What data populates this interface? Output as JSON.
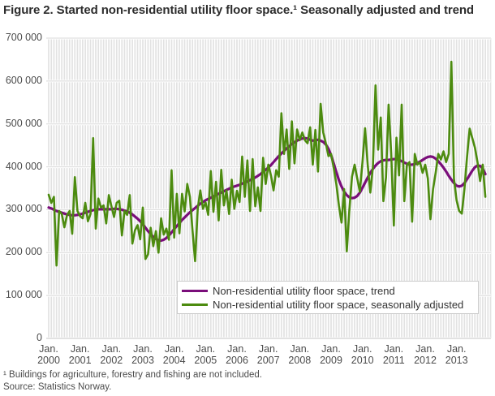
{
  "header": {
    "title": "Figure 2. Started non-residential utility floor space.¹ Seasonally adjusted and trend"
  },
  "footnotes": {
    "note": "¹ Buildings for agriculture, forestry and fishing are not included.",
    "source": "Source: Statistics Norway."
  },
  "chart_data": {
    "type": "line",
    "title": "Figure 2. Started non-residential utility floor space. Seasonally adjusted and trend",
    "x_axis": {
      "tick_prefix": "Jan.",
      "tick_years": [
        "2000",
        "2001",
        "2002",
        "2003",
        "2004",
        "2005",
        "2006",
        "2007",
        "2008",
        "2009",
        "2010",
        "2011",
        "2012",
        "2013"
      ],
      "start": "Jan 2000",
      "end": "Dec 2013",
      "frequency": "monthly"
    },
    "y_axis": {
      "min": 0,
      "max": 700000,
      "tick_step": 100000,
      "tick_labels": [
        "700 000",
        "600 000",
        "500 000",
        "400 000",
        "300 000",
        "200 000",
        "100 000",
        "0"
      ]
    },
    "grid": {
      "vertical": "monthly stripes",
      "horizontal": "every 100 000"
    },
    "legend": {
      "position": "inside-bottom-center",
      "border": "#cccccc"
    },
    "series": [
      {
        "id": "trend",
        "label": "Non-residential utility floor space, trend",
        "color": "#7a0e7a",
        "stroke_width": 3.2,
        "values": [
          305000,
          303000,
          300000,
          297000,
          295000,
          293000,
          291000,
          289000,
          288000,
          287000,
          287000,
          288000,
          289000,
          291000,
          293000,
          295000,
          297000,
          299000,
          300000,
          301000,
          301000,
          301000,
          301000,
          301000,
          301000,
          302000,
          302000,
          301000,
          300000,
          298000,
          296000,
          293000,
          289000,
          284000,
          279000,
          273000,
          266000,
          258000,
          250000,
          243000,
          237000,
          232000,
          229000,
          228000,
          230000,
          234000,
          240000,
          247000,
          255000,
          262000,
          269000,
          276000,
          282000,
          288000,
          294000,
          299000,
          304000,
          309000,
          314000,
          318000,
          322000,
          325000,
          328000,
          331000,
          334000,
          337000,
          340000,
          343000,
          346000,
          349000,
          352000,
          354000,
          356000,
          358000,
          361000,
          363000,
          366000,
          369000,
          372000,
          375000,
          379000,
          383000,
          388000,
          393000,
          398000,
          404000,
          411000,
          418000,
          425000,
          431000,
          437000,
          443000,
          448000,
          453000,
          457000,
          461000,
          464000,
          466000,
          467000,
          466000,
          463000,
          461000,
          462000,
          463000,
          461000,
          458000,
          452000,
          442000,
          427000,
          408000,
          388000,
          369000,
          354000,
          342000,
          334000,
          329000,
          327000,
          328000,
          332000,
          340000,
          351000,
          363000,
          375000,
          386000,
          395000,
          403000,
          409000,
          413000,
          415000,
          416000,
          416000,
          417000,
          418000,
          418000,
          416000,
          413000,
          410000,
          407000,
          405000,
          405000,
          406000,
          409000,
          412000,
          416000,
          420000,
          423000,
          424000,
          423000,
          419000,
          413000,
          406000,
          398000,
          389000,
          379000,
          370000,
          362000,
          356000,
          354000,
          356000,
          362000,
          371000,
          381000,
          391000,
          399000,
          403000,
          402000,
          396000,
          383000
        ]
      },
      {
        "id": "seasonally-adjusted",
        "label": "Non-residential utility floor space, seasonally adjusted",
        "color": "#4c8b0f",
        "stroke_width": 2.6,
        "values": [
          335000,
          316000,
          330000,
          170000,
          297000,
          290000,
          259000,
          287000,
          297000,
          244000,
          376000,
          297000,
          285000,
          280000,
          316000,
          273000,
          290000,
          467000,
          256000,
          326000,
          305000,
          310000,
          268000,
          334000,
          308000,
          283000,
          316000,
          321000,
          240000,
          297000,
          288000,
          334000,
          221000,
          252000,
          264000,
          231000,
          305000,
          185000,
          196000,
          258000,
          215000,
          250000,
          200000,
          280000,
          242000,
          256000,
          230000,
          392000,
          235000,
          337000,
          245000,
          337000,
          296000,
          360000,
          330000,
          252000,
          180000,
          302000,
          345000,
          302000,
          317000,
          288000,
          390000,
          295000,
          365000,
          275000,
          393000,
          310000,
          345000,
          290000,
          370000,
          302000,
          344000,
          318000,
          424000,
          330000,
          415000,
          297000,
          418000,
          308000,
          352000,
          297000,
          421000,
          360000,
          405000,
          380000,
          345000,
          392000,
          377000,
          525000,
          430000,
          487000,
          395000,
          506000,
          408000,
          487000,
          462000,
          480000,
          462000,
          455000,
          492000,
          405000,
          486000,
          389000,
          547000,
          480000,
          455000,
          425000,
          430000,
          398000,
          360000,
          310000,
          270000,
          348000,
          203000,
          300000,
          377000,
          405000,
          373000,
          342000,
          410000,
          490000,
          405000,
          340000,
          400000,
          590000,
          440000,
          515000,
          320000,
          375000,
          545000,
          430000,
          263000,
          468000,
          380000,
          545000,
          320000,
          405000,
          411000,
          272000,
          430000,
          405000,
          411000,
          386000,
          405000,
          373000,
          278000,
          348000,
          386000,
          430000,
          417000,
          436000,
          411000,
          430000,
          645000,
          372000,
          322000,
          297000,
          291000,
          348000,
          423000,
          489000,
          467000,
          445000,
          411000,
          367000,
          405000,
          330000
        ]
      }
    ]
  }
}
